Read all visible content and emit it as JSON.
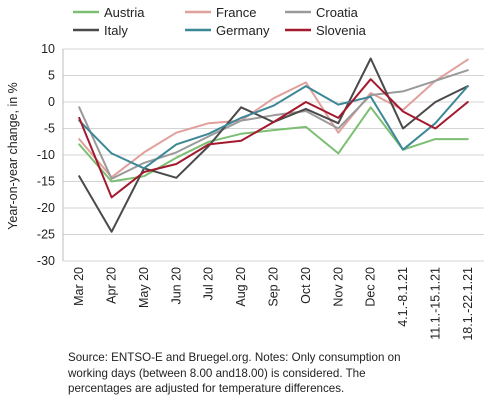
{
  "chart_data": {
    "type": "line",
    "ylabel": "Year-on-year change, in %",
    "xlabel": "",
    "ylim": [
      -30,
      10
    ],
    "yticks": [
      10,
      5,
      0,
      -5,
      -10,
      -15,
      -20,
      -25,
      -30
    ],
    "grid": true,
    "legend_position": "top",
    "categories": [
      "Mar 20",
      "Apr 20",
      "May 20",
      "Jun 20",
      "Jul 20",
      "Aug 20",
      "Sep 20",
      "Oct 20",
      "Nov 20",
      "Dec 20",
      "4.1.-8.1.21",
      "11.1.-15.1.21",
      "18.1.-22.1.21"
    ],
    "series": [
      {
        "name": "Austria",
        "color": "#7cbf73",
        "values": [
          -8,
          -15,
          -14,
          -10.5,
          -7.5,
          -6,
          -5.3,
          -4.7,
          -9.7,
          -1,
          -9,
          -7,
          -7
        ]
      },
      {
        "name": "France",
        "color": "#e0a09c",
        "values": [
          -7,
          -14.2,
          -9.5,
          -5.8,
          -4,
          -3.5,
          0.7,
          3.7,
          -5.8,
          1.7,
          -1.5,
          4,
          8
        ]
      },
      {
        "name": "Croatia",
        "color": "#9a9a9a",
        "values": [
          -1,
          -14.5,
          -11.5,
          -9.5,
          -6.5,
          -3.5,
          -2.5,
          -1.7,
          -5,
          1.3,
          2,
          4,
          6
        ]
      },
      {
        "name": "Italy",
        "color": "#4a4a4a",
        "values": [
          -14,
          -24.5,
          -12.5,
          -14.3,
          -8.3,
          -1,
          -3.8,
          -1.3,
          -4,
          8.2,
          -5,
          0,
          3
        ]
      },
      {
        "name": "Germany",
        "color": "#3d8896",
        "values": [
          -3.5,
          -9.7,
          -12.5,
          -8,
          -6,
          -3,
          -0.7,
          3,
          -0.5,
          1,
          -9,
          -4,
          3
        ]
      },
      {
        "name": "Slovenia",
        "color": "#a3192e",
        "values": [
          -3,
          -18,
          -13.2,
          -11.7,
          -8,
          -7.3,
          -3.8,
          0,
          -3,
          4.3,
          -1.8,
          -5,
          0
        ]
      }
    ]
  },
  "footnote": {
    "line1": "Source: ENTSO-E and Bruegel.org. Notes: Only consumption on",
    "line2": "working days (between 8.00 and18.00) is considered. The",
    "line3": "percentages are adjusted for temperature differences."
  }
}
